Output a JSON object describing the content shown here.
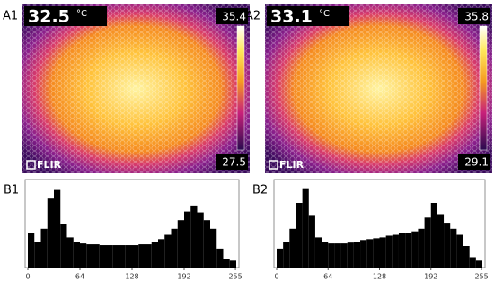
{
  "images": [
    {
      "label": "A1",
      "temperature": "32.5",
      "unit": "°C",
      "scale_max": "35.4",
      "scale_min": "27.5",
      "logo": "FLIR"
    },
    {
      "label": "A2",
      "temperature": "33.1",
      "unit": "°C",
      "scale_max": "35.8",
      "scale_min": "29.1",
      "logo": "FLIR"
    }
  ],
  "chart_data": [
    {
      "type": "histogram",
      "title": "B1",
      "color": "#000000",
      "bins": [
        0,
        8,
        16,
        24,
        32,
        40,
        48,
        56,
        64,
        72,
        80,
        88,
        96,
        104,
        112,
        120,
        128,
        136,
        144,
        152,
        160,
        168,
        176,
        184,
        192,
        200,
        208,
        216,
        224,
        232,
        240,
        248,
        256
      ],
      "counts": [
        40,
        30,
        45,
        80,
        90,
        50,
        35,
        30,
        28,
        27,
        27,
        26,
        26,
        26,
        26,
        26,
        26,
        27,
        27,
        30,
        33,
        38,
        45,
        55,
        65,
        72,
        64,
        55,
        45,
        22,
        10,
        8
      ],
      "xlim": [
        0,
        256
      ],
      "xticks": [
        0,
        64,
        128,
        192,
        255
      ],
      "ylim": [
        0,
        100
      ]
    },
    {
      "type": "histogram",
      "title": "B2",
      "color": "#000000",
      "bins": [
        0,
        8,
        16,
        24,
        32,
        40,
        48,
        56,
        64,
        72,
        80,
        88,
        96,
        104,
        112,
        120,
        128,
        136,
        144,
        152,
        160,
        168,
        176,
        184,
        192,
        200,
        208,
        216,
        224,
        232,
        240,
        248,
        256
      ],
      "counts": [
        22,
        30,
        45,
        75,
        92,
        60,
        35,
        30,
        28,
        28,
        28,
        29,
        30,
        32,
        33,
        34,
        35,
        37,
        38,
        40,
        40,
        42,
        45,
        58,
        75,
        62,
        52,
        45,
        38,
        25,
        12,
        8
      ],
      "xlim": [
        0,
        256
      ],
      "xticks": [
        0,
        64,
        128,
        192,
        255
      ],
      "ylim": [
        0,
        100
      ]
    }
  ]
}
